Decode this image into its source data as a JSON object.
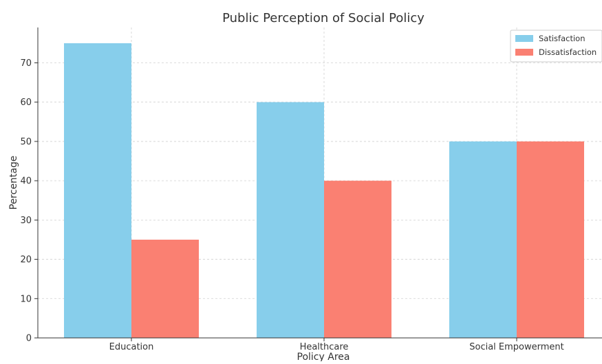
{
  "chart_data": {
    "type": "bar",
    "title": "Public Perception of Social Policy",
    "xlabel": "Policy Area",
    "ylabel": "Percentage",
    "categories": [
      "Education",
      "Healthcare",
      "Social Empowerment"
    ],
    "series": [
      {
        "name": "Satisfaction",
        "values": [
          75,
          60,
          50
        ],
        "color": "#87CEEB"
      },
      {
        "name": "Dissatisfaction",
        "values": [
          25,
          40,
          50
        ],
        "color": "#FA8072"
      }
    ],
    "ylim": [
      0,
      79
    ],
    "yticks": [
      0,
      10,
      20,
      30,
      40,
      50,
      60,
      70
    ],
    "grid": true,
    "legend_position": "top-right"
  }
}
